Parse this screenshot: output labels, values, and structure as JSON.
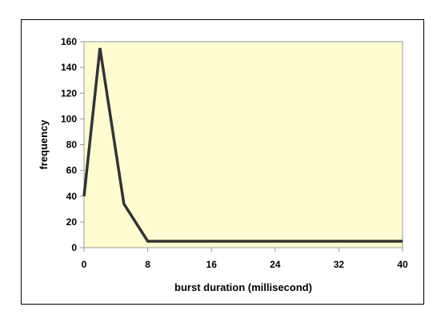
{
  "chart_data": {
    "type": "line",
    "title": "",
    "xlabel": "burst duration (millisecond)",
    "ylabel": "frequency",
    "xlim": [
      0,
      40
    ],
    "ylim": [
      0,
      160
    ],
    "xticks": [
      "0",
      "8",
      "16",
      "24",
      "32",
      "40"
    ],
    "yticks": [
      "0",
      "20",
      "40",
      "60",
      "80",
      "100",
      "120",
      "140",
      "160"
    ],
    "grid": false,
    "legend": "none",
    "series": [
      {
        "x": [
          0,
          2,
          5,
          8,
          10,
          40
        ],
        "y": [
          40,
          155,
          34,
          5,
          5,
          5
        ]
      }
    ],
    "colors": {
      "plot_background": "#fefdd1",
      "line": "#333333",
      "axis": "#999999",
      "frame": "#000000"
    }
  }
}
